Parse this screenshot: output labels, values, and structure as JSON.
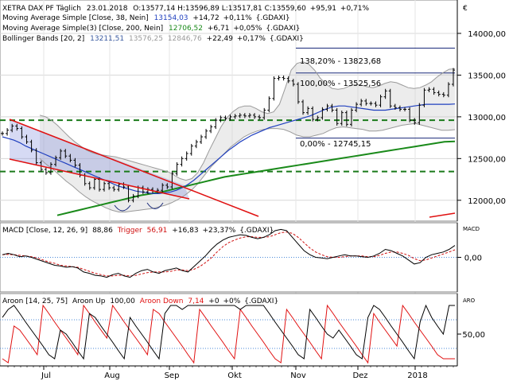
{
  "colors": {
    "price": "#000000",
    "ma38": "#1f3fbf",
    "ma200": "#1a8a1a",
    "bollinger": "#9a9a9a",
    "channel": "#e01010",
    "support": "#1a7a1a",
    "macd": "#000000",
    "trigger": "#d01010",
    "aroon_up": "#000000",
    "aroon_down": "#e01010"
  },
  "legend": {
    "main_parts": [
      "XETRA DAX PF Täglich",
      "23.01.2018",
      "O:13577,14",
      "H:13596,89",
      "L:13517,81",
      "C:13559,60",
      "+95,91",
      "+0,71%"
    ],
    "ma38_parts": [
      "Moving Average Simple [Close, 38, Nein]",
      "13154,03",
      "+14,72",
      "+0,11%",
      "{.GDAXI}"
    ],
    "ma200_parts": [
      "Moving Average Simple(3) [Close, 200, Nein]",
      "12706,52",
      "+6,71",
      "+0,05%",
      "{.GDAXI}"
    ],
    "bb_parts": [
      "Bollinger Bands [20, 2]",
      "13211,51",
      "13576,25",
      "12846,76",
      "+22,49",
      "+0,17%",
      "{.GDAXI}"
    ],
    "macd_parts": [
      "MACD [Close, 12, 26, 9]",
      "88,86",
      "Trigger",
      "56,91",
      "+16,83",
      "+23,37%",
      "{.GDAXI}"
    ],
    "aroon_parts": [
      "Aroon [14, 25, 75]",
      "Aroon Up",
      "100,00",
      "Aroon Down",
      "7,14",
      "+0",
      "+0%",
      "{.GDAXI}"
    ]
  },
  "fib_labels": [
    "138,20% - 13823,68",
    "100,00% - 13525,56",
    "0,00% - 12745,15"
  ],
  "macd_axis_title": "MACD",
  "aroon_axis_title": "ARO",
  "chart_data": [
    {
      "type": "line",
      "name": "price",
      "x_ticks": [
        "Jul",
        "Aug",
        "Sep",
        "Okt",
        "Nov",
        "Dez",
        "2018"
      ],
      "y_ticks": [
        "12000,00",
        "12500,00",
        "13000,00",
        "13500,00",
        "14000,00"
      ],
      "ylim": [
        11750,
        14400
      ],
      "axis_marker": "€",
      "series": [
        {
          "values": [
            12800,
            12840,
            12890,
            12860,
            12760,
            12700,
            12600,
            12450,
            12370,
            12330,
            12430,
            12510,
            12590,
            12530,
            12480,
            12420,
            12300,
            12200,
            12150,
            12250,
            12130,
            12200,
            12150,
            12130,
            12190,
            12160,
            12000,
            12050,
            12150,
            12100,
            12130,
            12110,
            12120,
            12180,
            12160,
            12320,
            12430,
            12500,
            12560,
            12650,
            12700,
            12760,
            12830,
            12880,
            12960,
            12990,
            12980,
            13000,
            13010,
            13020,
            13010,
            13020,
            13000,
            12990,
            13080,
            13220,
            13460,
            13470,
            13460,
            13430,
            13390,
            13180,
            13050,
            13100,
            12970,
            12990,
            13090,
            13130,
            13080,
            12920,
            13050,
            12910,
            13080,
            13150,
            13190,
            13160,
            13160,
            13140,
            13240,
            13310,
            13130,
            13110,
            13090,
            13090,
            12960,
            12930,
            13140,
            13320,
            13330,
            13290,
            13270,
            13260,
            13390,
            13560
          ]
        },
        {
          "name": "MA 38",
          "values": [
            12760,
            12740,
            12720,
            12690,
            12650,
            12620,
            12590,
            12560,
            12530,
            12500,
            12470,
            12440,
            12410,
            12380,
            12350,
            12320,
            12290,
            12260,
            12230,
            12200,
            12170,
            12150,
            12130,
            12110,
            12100,
            12090,
            12080,
            12080,
            12090,
            12100,
            12120,
            12150,
            12190,
            12240,
            12300,
            12360,
            12420,
            12480,
            12540,
            12600,
            12650,
            12700,
            12740,
            12780,
            12810,
            12840,
            12870,
            12890,
            12910,
            12930,
            12950,
            12970,
            12990,
            13010,
            13040,
            13070,
            13100,
            13120,
            13130,
            13130,
            13120,
            13110,
            13100,
            13090,
            13080,
            13080,
            13080,
            13090,
            13100,
            13110,
            13120,
            13130,
            13140,
            13150,
            13150,
            13150,
            13150,
            13150,
            13154
          ]
        },
        {
          "name": "MA 200",
          "values": [
            11820,
            11850,
            11880,
            11910,
            11940,
            11970,
            12000,
            12030,
            12060,
            12080,
            12100,
            12130,
            12160,
            12190,
            12220,
            12250,
            12280,
            12300,
            12320,
            12340,
            12360,
            12380,
            12400,
            12420,
            12440,
            12460,
            12480,
            12500,
            12520,
            12540,
            12560,
            12580,
            12600,
            12620,
            12640,
            12660,
            12680,
            12700,
            12706
          ]
        },
        {
          "name": "Bollinger upper",
          "values": [
            13020,
            13000,
            12960,
            12900,
            12830,
            12760,
            12700,
            12650,
            12600,
            12570,
            12550,
            12540,
            12530,
            12520,
            12500,
            12480,
            12460,
            12440,
            12420,
            12400,
            12380,
            12360,
            12340,
            12300,
            12260,
            12240,
            12260,
            12330,
            12450,
            12600,
            12740,
            12880,
            12990,
            13060,
            13110,
            13130,
            13130,
            13100,
            13060,
            13040,
            13060,
            13150,
            13350,
            13560,
            13640,
            13660,
            13630,
            13560,
            13460,
            13390,
            13340,
            13330,
            13340,
            13370,
            13390,
            13380,
            13360,
            13350,
            13370,
            13400,
            13420,
            13410,
            13380,
            13350,
            13340,
            13350,
            13380,
            13420,
            13480,
            13530,
            13570,
            13576
          ]
        },
        {
          "name": "Bollinger lower",
          "values": [
            12500,
            12430,
            12370,
            12300,
            12230,
            12170,
            12100,
            12040,
            11990,
            11950,
            11910,
            11880,
            11860,
            11860,
            11870,
            11880,
            11890,
            11900,
            11920,
            11940,
            11970,
            12010,
            12060,
            12120,
            12200,
            12300,
            12400,
            12480,
            12560,
            12640,
            12700,
            12760,
            12800,
            12830,
            12850,
            12860,
            12860,
            12850,
            12820,
            12780,
            12760,
            12760,
            12780,
            12800,
            12840,
            12870,
            12880,
            12870,
            12860,
            12850,
            12830,
            12830,
            12840,
            12860,
            12880,
            12900,
            12910,
            12920,
            12900,
            12880,
            12860,
            12840,
            12840,
            12846
          ]
        }
      ],
      "horizontal_levels": [
        12960,
        12345
      ],
      "fibonacci_levels": [
        13823.68,
        13525.56,
        12745.15
      ]
    },
    {
      "type": "line",
      "name": "MACD",
      "y_ticks": [
        "0,00"
      ],
      "ylim": [
        -260,
        260
      ],
      "series": [
        {
          "name": "MACD",
          "values": [
            20,
            30,
            20,
            5,
            10,
            0,
            -15,
            -30,
            -45,
            -60,
            -65,
            -75,
            -70,
            -80,
            -110,
            -120,
            -135,
            -140,
            -150,
            -130,
            -120,
            -140,
            -150,
            -120,
            -100,
            -90,
            -110,
            -120,
            -100,
            -90,
            -80,
            -100,
            -110,
            -70,
            -30,
            10,
            60,
            100,
            130,
            150,
            160,
            170,
            165,
            150,
            140,
            150,
            170,
            200,
            210,
            200,
            150,
            100,
            50,
            20,
            0,
            -5,
            -10,
            0,
            10,
            20,
            10,
            10,
            5,
            0,
            10,
            30,
            60,
            50,
            30,
            10,
            -20,
            -50,
            -40,
            0,
            20,
            30,
            40,
            60,
            89
          ]
        },
        {
          "name": "Trigger",
          "values": [
            20,
            22,
            20,
            15,
            10,
            5,
            -5,
            -20,
            -35,
            -45,
            -60,
            -65,
            -70,
            -75,
            -90,
            -105,
            -120,
            -130,
            -140,
            -140,
            -135,
            -135,
            -140,
            -135,
            -125,
            -115,
            -110,
            -110,
            -110,
            -105,
            -95,
            -95,
            -100,
            -90,
            -70,
            -40,
            -5,
            40,
            80,
            110,
            130,
            145,
            155,
            155,
            150,
            150,
            155,
            170,
            185,
            190,
            180,
            150,
            110,
            70,
            40,
            20,
            5,
            0,
            0,
            5,
            10,
            10,
            10,
            5,
            5,
            15,
            30,
            40,
            40,
            30,
            15,
            -10,
            -25,
            -20,
            -5,
            10,
            25,
            40,
            57
          ]
        }
      ]
    },
    {
      "type": "line",
      "name": "Aroon",
      "y_ticks": [
        "50,00"
      ],
      "ylim": [
        0,
        100
      ],
      "series": [
        {
          "name": "Aroon Up",
          "values": [
            79,
            93,
            100,
            86,
            71,
            57,
            43,
            29,
            14,
            7,
            57,
            50,
            36,
            21,
            7,
            86,
            79,
            64,
            50,
            36,
            21,
            7,
            79,
            64,
            50,
            36,
            21,
            7,
            86,
            100,
            100,
            93,
            100,
            100,
            100,
            100,
            100,
            100,
            100,
            100,
            100,
            93,
            100,
            100,
            100,
            100,
            86,
            71,
            57,
            43,
            29,
            14,
            7,
            93,
            79,
            64,
            50,
            43,
            57,
            43,
            29,
            14,
            7,
            79,
            100,
            93,
            79,
            64,
            50,
            36,
            21,
            7,
            71,
            100,
            79,
            64,
            50,
            100,
            100
          ]
        },
        {
          "name": "Aroon Down",
          "values": [
            7,
            0,
            64,
            57,
            43,
            29,
            14,
            100,
            86,
            71,
            57,
            43,
            29,
            14,
            100,
            86,
            71,
            57,
            43,
            100,
            86,
            71,
            57,
            43,
            29,
            14,
            93,
            86,
            71,
            57,
            43,
            29,
            14,
            0,
            93,
            79,
            64,
            50,
            36,
            21,
            7,
            93,
            79,
            64,
            50,
            36,
            21,
            7,
            0,
            93,
            79,
            64,
            50,
            36,
            21,
            7,
            100,
            86,
            71,
            57,
            43,
            29,
            14,
            0,
            86,
            71,
            57,
            43,
            29,
            100,
            86,
            71,
            57,
            43,
            29,
            14,
            7,
            7,
            7
          ]
        }
      ]
    }
  ]
}
